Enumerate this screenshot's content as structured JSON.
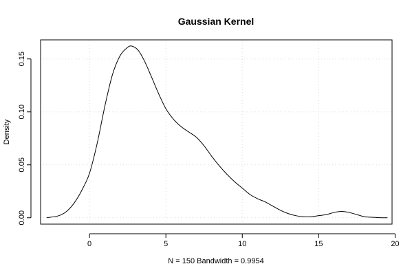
{
  "chart_data": {
    "type": "line",
    "title": "Gaussian Kernel",
    "xlabel": "N = 150   Bandwidth = 0.9954",
    "ylabel": "Density",
    "xlim": [
      -3.2,
      19.8
    ],
    "ylim": [
      -0.006,
      0.168
    ],
    "x_ticks": [
      0,
      5,
      10,
      15,
      20
    ],
    "x_tick_labels": [
      "0",
      "5",
      "10",
      "15",
      "20"
    ],
    "y_ticks": [
      0.0,
      0.05,
      0.1,
      0.15
    ],
    "y_tick_labels": [
      "0.00",
      "0.05",
      "0.10",
      "0.15"
    ],
    "grid": true,
    "series": [
      {
        "x": [
          -2.8,
          -2.0,
          -1.5,
          -1.0,
          -0.5,
          0.0,
          0.5,
          1.0,
          1.5,
          2.0,
          2.5,
          2.8,
          3.2,
          3.6,
          4.0,
          4.5,
          5.0,
          5.5,
          6.0,
          6.5,
          7.0,
          7.5,
          8.0,
          8.5,
          9.0,
          9.5,
          10.0,
          10.5,
          11.0,
          11.5,
          12.0,
          12.5,
          13.0,
          13.5,
          14.0,
          14.5,
          15.0,
          15.5,
          16.0,
          16.5,
          17.0,
          17.5,
          18.0,
          18.5,
          19.0,
          19.5
        ],
        "y": [
          0.0,
          0.002,
          0.006,
          0.014,
          0.026,
          0.042,
          0.07,
          0.105,
          0.135,
          0.153,
          0.161,
          0.162,
          0.158,
          0.148,
          0.135,
          0.118,
          0.103,
          0.093,
          0.086,
          0.081,
          0.076,
          0.068,
          0.058,
          0.049,
          0.041,
          0.034,
          0.028,
          0.022,
          0.018,
          0.015,
          0.011,
          0.007,
          0.004,
          0.002,
          0.001,
          0.001,
          0.002,
          0.003,
          0.005,
          0.006,
          0.005,
          0.003,
          0.001,
          0.0005,
          0.0001,
          0.0
        ]
      }
    ]
  }
}
